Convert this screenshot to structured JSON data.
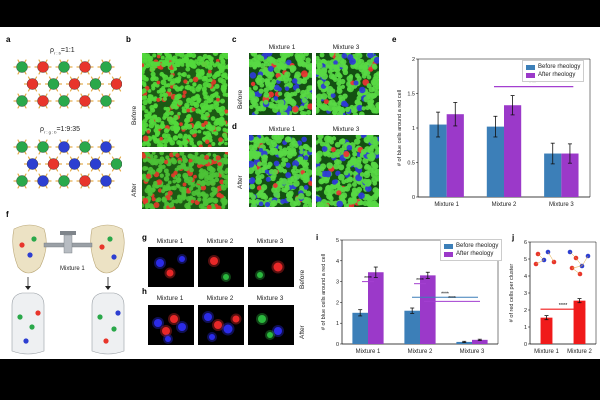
{
  "panel_labels": {
    "a": "a",
    "b": "b",
    "c": "c",
    "d": "d",
    "e": "e",
    "f": "f",
    "g": "g",
    "h": "h",
    "i": "i",
    "j": "j"
  },
  "panel_a": {
    "ratio_1": {
      "symbol": "ρ",
      "sub": "r : b",
      "value": "=1:1"
    },
    "ratio_2": {
      "symbol": "ρ",
      "sub": "r : g : b",
      "value": "=1:9:35"
    }
  },
  "row_labels": {
    "before": "Before",
    "after": "After"
  },
  "mixture_labels": {
    "m1": "Mixture 1",
    "m2": "Mixture 2",
    "m3": "Mixture 3"
  },
  "legend": {
    "before": "Before rheology",
    "after": "After rheology"
  },
  "colors": {
    "before": "#3c7fb8",
    "after": "#9b39c9",
    "red_bar": "#f01a1a",
    "sig_line": "#a33fd0",
    "sig_line_blue": "#3c7fb8"
  },
  "panel_f": {
    "valve_label": "Mixture 1"
  },
  "chart_data": [
    {
      "id": "e",
      "type": "bar",
      "categories": [
        "Mixture 1",
        "Mixture 2",
        "Mixture 3"
      ],
      "series": [
        {
          "name": "Before rheology",
          "values": [
            1.05,
            1.02,
            0.63
          ],
          "errors": [
            0.18,
            0.15,
            0.15
          ]
        },
        {
          "name": "After rheology",
          "values": [
            1.2,
            1.33,
            0.63
          ],
          "errors": [
            0.17,
            0.14,
            0.14
          ]
        }
      ],
      "ylabel": "# of blue cells around a red cell",
      "ylim": [
        0,
        2
      ],
      "yticks": [
        "0",
        "0.5",
        "1",
        "1.5",
        "2"
      ],
      "significance": [
        {
          "label": "***",
          "from": "Mixture 2",
          "to": "Mixture 3"
        }
      ]
    },
    {
      "id": "i",
      "type": "bar",
      "categories": [
        "Mixture 1",
        "Mixture 2",
        "Mixture 3"
      ],
      "series": [
        {
          "name": "Before rheology",
          "values": [
            1.5,
            1.6,
            0.1
          ],
          "errors": [
            0.15,
            0.13,
            0.03
          ]
        },
        {
          "name": "After rheology",
          "values": [
            3.45,
            3.3,
            0.2
          ],
          "errors": [
            0.25,
            0.15,
            0.03
          ]
        }
      ],
      "ylabel": "# of blue cells around a red cell",
      "ylim": [
        0,
        5
      ],
      "yticks": [
        "0",
        "1",
        "2",
        "3",
        "4",
        "5"
      ],
      "significance": [
        {
          "label": "****",
          "level": 3.0
        },
        {
          "label": "****",
          "level": 2.9
        },
        {
          "label": "****",
          "level": 2.25
        },
        {
          "label": "****",
          "level": 2.05
        }
      ]
    },
    {
      "id": "j",
      "type": "bar",
      "categories": [
        "Mixture 1",
        "Mixture 2"
      ],
      "values": [
        1.55,
        2.55
      ],
      "errors": [
        0.12,
        0.12
      ],
      "ylabel": "# of red cells per cluster",
      "ylim": [
        0,
        6
      ],
      "yticks": [
        "0",
        "1",
        "2",
        "3",
        "4",
        "5",
        "6"
      ],
      "significance": [
        {
          "label": "****",
          "from": "Mixture 1",
          "to": "Mixture 2"
        }
      ]
    }
  ]
}
